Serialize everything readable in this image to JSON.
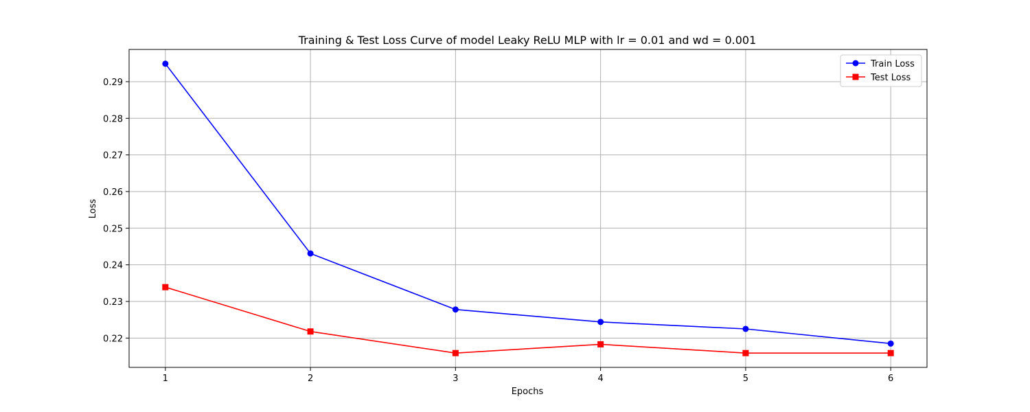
{
  "chart_data": {
    "type": "line",
    "title": "Training & Test Loss Curve of model Leaky ReLU MLP with lr = 0.01 and wd = 0.001",
    "xlabel": "Epochs",
    "ylabel": "Loss",
    "x": [
      1,
      2,
      3,
      4,
      5,
      6
    ],
    "xticks": [
      "1",
      "2",
      "3",
      "4",
      "5",
      "6"
    ],
    "yticks": [
      "0.22",
      "0.23",
      "0.24",
      "0.25",
      "0.26",
      "0.27",
      "0.28",
      "0.29"
    ],
    "ylim": [
      0.212,
      0.2988
    ],
    "xlim": [
      0.75,
      6.25
    ],
    "grid": true,
    "legend_position": "top-right",
    "series": [
      {
        "name": "Train Loss",
        "color": "#0000ff",
        "marker": "circle",
        "values": [
          0.2949,
          0.2431,
          0.2278,
          0.2244,
          0.2225,
          0.2185
        ]
      },
      {
        "name": "Test Loss",
        "color": "#ff0000",
        "marker": "square",
        "values": [
          0.2339,
          0.2218,
          0.2159,
          0.2183,
          0.2159,
          0.2159
        ]
      }
    ]
  }
}
